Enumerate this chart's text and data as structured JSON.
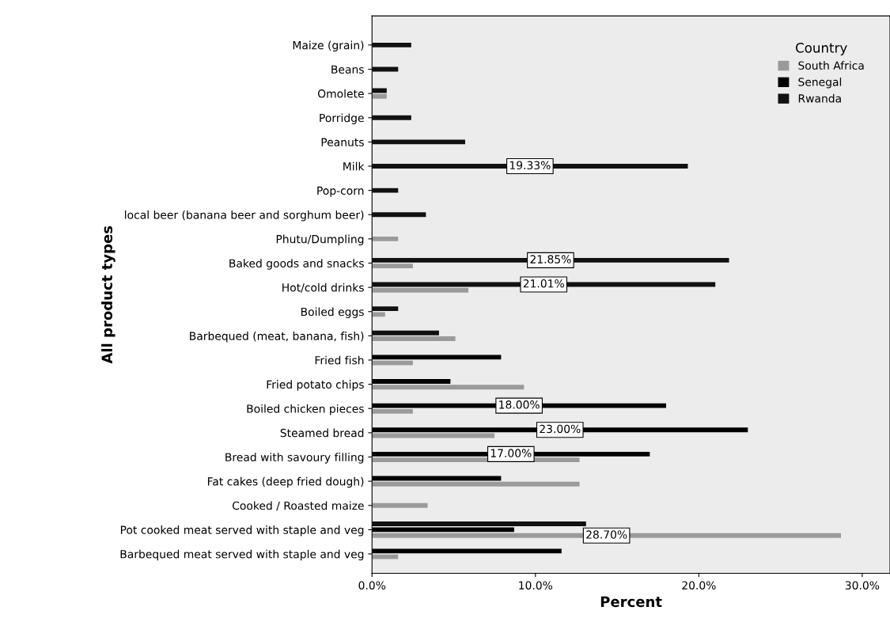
{
  "chart_data": {
    "type": "bar",
    "orientation": "horizontal",
    "xlabel": "Percent",
    "ylabel": "All product types",
    "legend_title": "Country",
    "legend": "top right",
    "grid": false,
    "categories": [
      "Maize (grain)",
      "Beans",
      "Omolete",
      "Porridge",
      "Peanuts",
      "Milk",
      "Pop-corn",
      "local beer (banana beer and sorghum beer)",
      "Phutu/Dumpling",
      "Baked goods and snacks",
      "Hot/cold drinks",
      "Boiled eggs",
      "Barbequed (meat, banana, fish)",
      "Fried fish",
      "Fried potato chips",
      "Boiled chicken pieces",
      "Steamed bread",
      "Bread with savoury filling",
      "Fat cakes (deep fried dough)",
      "Cooked / Roasted maize",
      "Pot cooked meat served with staple and veg",
      "Barbequed meat served with staple and veg"
    ],
    "series": [
      {
        "name": "South Africa",
        "color": "#9a9a9a",
        "values": [
          null,
          null,
          0.9,
          null,
          null,
          null,
          null,
          null,
          1.6,
          2.5,
          5.9,
          0.8,
          5.1,
          2.5,
          9.3,
          2.5,
          7.5,
          12.7,
          12.7,
          3.4,
          28.7,
          1.6
        ],
        "value_labels": [
          null,
          null,
          null,
          null,
          null,
          null,
          null,
          null,
          null,
          null,
          null,
          null,
          null,
          null,
          null,
          null,
          null,
          null,
          null,
          null,
          "28.70%",
          null
        ]
      },
      {
        "name": "Senegal",
        "color": "#000000",
        "values": [
          null,
          null,
          null,
          null,
          null,
          null,
          null,
          null,
          null,
          null,
          null,
          null,
          null,
          7.9,
          4.8,
          18.0,
          23.0,
          17.0,
          7.9,
          null,
          8.7,
          11.6
        ],
        "value_labels": [
          null,
          null,
          null,
          null,
          null,
          null,
          null,
          null,
          null,
          null,
          null,
          null,
          null,
          null,
          null,
          "18.00%",
          "23.00%",
          "17.00%",
          null,
          null,
          null,
          null
        ]
      },
      {
        "name": "Rwanda",
        "color": "#111111",
        "values": [
          2.4,
          1.6,
          0.9,
          2.4,
          5.7,
          19.33,
          1.6,
          3.3,
          null,
          21.85,
          21.01,
          1.6,
          4.1,
          null,
          null,
          null,
          null,
          null,
          null,
          null,
          13.1,
          null
        ],
        "value_labels": [
          null,
          null,
          null,
          null,
          null,
          "19.33%",
          null,
          null,
          null,
          "21.85%",
          "21.01%",
          null,
          null,
          null,
          null,
          null,
          null,
          null,
          null,
          null,
          null,
          null
        ]
      }
    ],
    "xlim": [
      0,
      31.7
    ],
    "xticks": [
      {
        "value": 0,
        "label": "0.0%"
      },
      {
        "value": 10,
        "label": "10.0%"
      },
      {
        "value": 20,
        "label": "20.0%"
      },
      {
        "value": 30,
        "label": "30.0%"
      }
    ]
  }
}
